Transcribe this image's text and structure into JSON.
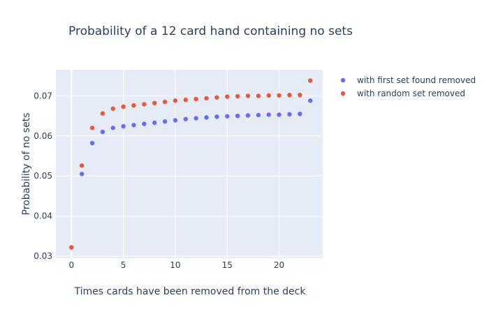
{
  "chart_data": {
    "type": "scatter",
    "title": "Probability of a 12 card hand containing no sets",
    "xlabel": "Times cards have been removed from the deck",
    "ylabel": "Probability of no sets",
    "xlim": [
      -1.5,
      24.2
    ],
    "ylim": [
      0.0295,
      0.0765
    ],
    "x_ticks": [
      0,
      5,
      10,
      15,
      20
    ],
    "y_ticks": [
      0.03,
      0.04,
      0.05,
      0.06,
      0.07
    ],
    "grid": true,
    "legend_position": "top-right",
    "series": [
      {
        "name": "with first set found removed",
        "color": "#636efa",
        "x": [
          0,
          1,
          2,
          3,
          4,
          5,
          6,
          7,
          8,
          9,
          10,
          11,
          12,
          13,
          14,
          15,
          16,
          17,
          18,
          19,
          20,
          21,
          22,
          23
        ],
        "y": [
          0.0322,
          0.0505,
          0.0582,
          0.061,
          0.062,
          0.0624,
          0.0627,
          0.063,
          0.0633,
          0.0636,
          0.0639,
          0.0642,
          0.0644,
          0.0646,
          0.0648,
          0.0649,
          0.065,
          0.0651,
          0.0652,
          0.0653,
          0.0653,
          0.0654,
          0.0655,
          0.0688
        ]
      },
      {
        "name": "with random set removed",
        "color": "#ef553b",
        "x": [
          0,
          1,
          2,
          3,
          4,
          5,
          6,
          7,
          8,
          9,
          10,
          11,
          12,
          13,
          14,
          15,
          16,
          17,
          18,
          19,
          20,
          21,
          22,
          23
        ],
        "y": [
          0.0322,
          0.0526,
          0.062,
          0.0656,
          0.0668,
          0.0673,
          0.0676,
          0.0679,
          0.0682,
          0.0685,
          0.0688,
          0.069,
          0.0692,
          0.0694,
          0.0696,
          0.0698,
          0.0699,
          0.07,
          0.07,
          0.0701,
          0.0701,
          0.0702,
          0.0702,
          0.0738
        ]
      }
    ]
  }
}
